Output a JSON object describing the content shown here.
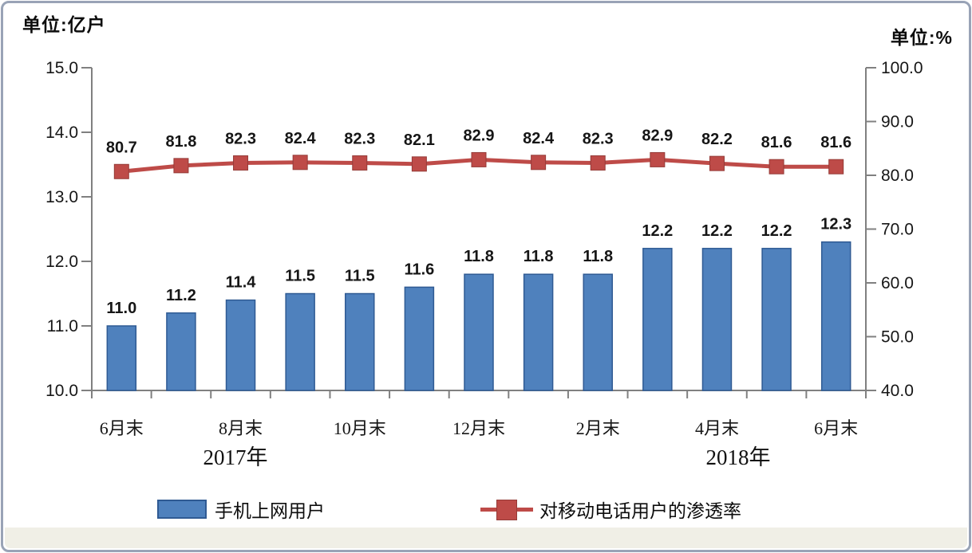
{
  "chart_data": {
    "type": "bar+line",
    "unit_left": "单位:亿户",
    "unit_right": "单位:%",
    "x_tick_labels": [
      {
        "index": 0,
        "label": "6月末"
      },
      {
        "index": 2,
        "label": "8月末"
      },
      {
        "index": 4,
        "label": "10月末"
      },
      {
        "index": 6,
        "label": "12月末"
      },
      {
        "index": 8,
        "label": "2月末"
      },
      {
        "index": 10,
        "label": "4月末"
      },
      {
        "index": 12,
        "label": "6月末"
      }
    ],
    "year_labels": [
      {
        "label": "2017年"
      },
      {
        "label": "2018年"
      }
    ],
    "left_axis": {
      "min": 10.0,
      "max": 15.0,
      "step": 1.0,
      "tick_labels": [
        "15.0",
        "14.0",
        "13.0",
        "12.0",
        "11.0",
        "10.0"
      ]
    },
    "right_axis": {
      "min": 40.0,
      "max": 100.0,
      "step": 10.0,
      "tick_labels": [
        "100.0",
        "90.0",
        "80.0",
        "70.0",
        "60.0",
        "50.0",
        "40.0"
      ]
    },
    "series": [
      {
        "name": "手机上网用户",
        "type": "bar",
        "axis": "left",
        "color": "#4F81BD",
        "border_color": "#2F5A93",
        "values": [
          11.0,
          11.2,
          11.4,
          11.5,
          11.5,
          11.6,
          11.8,
          11.8,
          11.8,
          12.2,
          12.2,
          12.2,
          12.3
        ]
      },
      {
        "name": "对移动电话用户的渗透率",
        "type": "line",
        "axis": "right",
        "color": "#BE4B48",
        "border_color": "#953B38",
        "values": [
          80.7,
          81.8,
          82.3,
          82.4,
          82.3,
          82.1,
          82.9,
          82.4,
          82.3,
          82.9,
          82.2,
          81.6,
          81.6
        ]
      }
    ],
    "grid": "off",
    "legend_position": "bottom",
    "axis_color": "#808080"
  }
}
